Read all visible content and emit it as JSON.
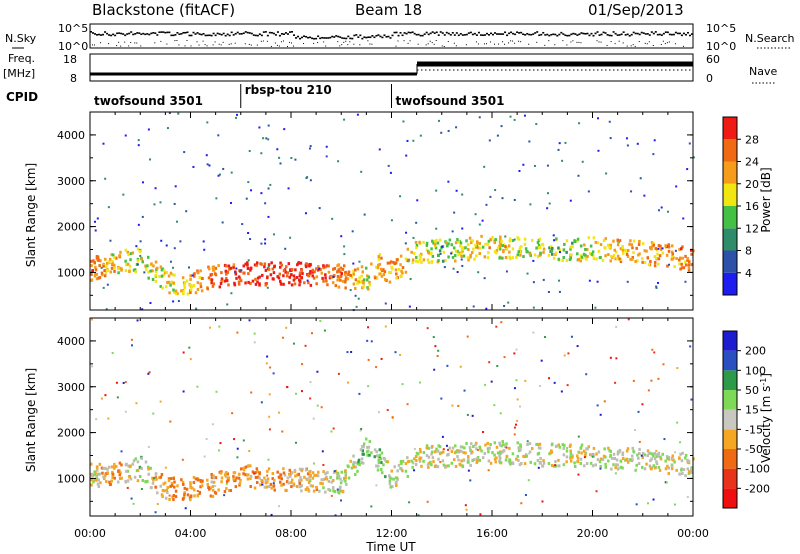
{
  "header": {
    "station": "Blackstone (fitACF)",
    "beam": "Beam 18",
    "date": "01/Sep/2013"
  },
  "left_labels": {
    "nsky": "N.Sky",
    "freq": "Freq.",
    "mhz": "[MHz]",
    "cpid": "CPID"
  },
  "right_labels": {
    "nsearch": "N.Search",
    "nave": "Nave"
  },
  "noise_panel": {
    "yticks_left": [
      "10^5",
      "10^0"
    ],
    "yticks_right": [
      "10^5",
      "10^0"
    ]
  },
  "freq_panel": {
    "yticks_left": [
      "18",
      "8"
    ],
    "yticks_right": [
      "60",
      "0"
    ]
  },
  "cpid_segments": [
    {
      "label": "twofsound 3501",
      "start_hour": 0,
      "end_hour": 6
    },
    {
      "label": "rbsp-tou 210",
      "start_hour": 6,
      "end_hour": 12
    },
    {
      "label": "twofsound 3501",
      "start_hour": 12,
      "end_hour": 24
    }
  ],
  "x_axis": {
    "label": "Time UT",
    "ticks": [
      "00:00",
      "04:00",
      "08:00",
      "12:00",
      "16:00",
      "20:00",
      "00:00"
    ]
  },
  "power_panel": {
    "ylabel": "Slant Range [km]",
    "yticks": [
      "1000",
      "2000",
      "3000",
      "4000"
    ],
    "colorbar_label": "Power [dB]",
    "colorbar_ticks": [
      "4",
      "8",
      "12",
      "16",
      "20",
      "24",
      "28"
    ],
    "colors": [
      "#1d1df0",
      "#2b52a8",
      "#2f8c6a",
      "#44c144",
      "#f2e612",
      "#f59c1a",
      "#f06a14",
      "#ef1a14"
    ]
  },
  "velocity_panel": {
    "ylabel": "Slant Range [km]",
    "yticks": [
      "1000",
      "2000",
      "3000",
      "4000"
    ],
    "colorbar_label": "Velocity [m s",
    "colorbar_label_sup": "-1",
    "colorbar_label_close": "]",
    "colorbar_ticks": [
      "200",
      "100",
      "50",
      "15",
      "-15",
      "-50",
      "-100",
      "-200"
    ],
    "colors": [
      "#1d1dcf",
      "#2a4fc0",
      "#2d9a4a",
      "#7ed957",
      "#c8c8c0",
      "#f5a623",
      "#f06a14",
      "#e8321a",
      "#ef0f0f"
    ],
    "ground_scatter_color": "#bdbdb5"
  },
  "chart_data": [
    {
      "type": "heatmap",
      "title": "Blackstone (fitACF)",
      "subtitle": "Beam 18",
      "xlabel": "Time UT",
      "ylabel": "Slant Range [km]",
      "xlim": [
        0,
        24
      ],
      "ylim": [
        180,
        4500
      ],
      "colorbar": {
        "label": "Power [dB]",
        "range": [
          0,
          30
        ]
      },
      "series": [
        {
          "x_hours": [
            0,
            1,
            2,
            3,
            4,
            5,
            6,
            7,
            8,
            9,
            10,
            11,
            11.5,
            12,
            13,
            14,
            15,
            16,
            17,
            18,
            19,
            20,
            21,
            22,
            23,
            24
          ],
          "y_range_km": [
            1100,
            1250,
            1300,
            800,
            800,
            950,
            1000,
            1000,
            1000,
            1000,
            950,
            900,
            1200,
            1000,
            1500,
            1500,
            1550,
            1600,
            1550,
            1550,
            1500,
            1550,
            1500,
            1450,
            1400,
            1300
          ],
          "power_dB": [
            26,
            20,
            16,
            18,
            22,
            26,
            30,
            30,
            30,
            28,
            24,
            18,
            22,
            24,
            18,
            16,
            18,
            20,
            18,
            16,
            16,
            18,
            20,
            22,
            24,
            24
          ]
        }
      ]
    },
    {
      "type": "heatmap",
      "xlabel": "Time UT",
      "ylabel": "Slant Range [km]",
      "xlim": [
        0,
        24
      ],
      "ylim": [
        180,
        4500
      ],
      "colorbar": {
        "label": "Velocity [m s^-1]",
        "range": [
          -200,
          200
        ]
      },
      "series": [
        {
          "x_hours": [
            0,
            1,
            2,
            3,
            4,
            5,
            6,
            7,
            8,
            9,
            10,
            11,
            11.5,
            12,
            13,
            14,
            16,
            18,
            20,
            22,
            24
          ],
          "y_range_km": [
            1100,
            1100,
            1250,
            800,
            800,
            900,
            1100,
            1000,
            1000,
            1000,
            950,
            1700,
            1400,
            1000,
            1500,
            1500,
            1600,
            1550,
            1500,
            1450,
            1300
          ],
          "velocity_mps": [
            0,
            -50,
            20,
            -50,
            -50,
            -40,
            -60,
            -40,
            -30,
            -20,
            0,
            30,
            40,
            0,
            0,
            0,
            0,
            0,
            0,
            0,
            0
          ]
        }
      ]
    }
  ]
}
